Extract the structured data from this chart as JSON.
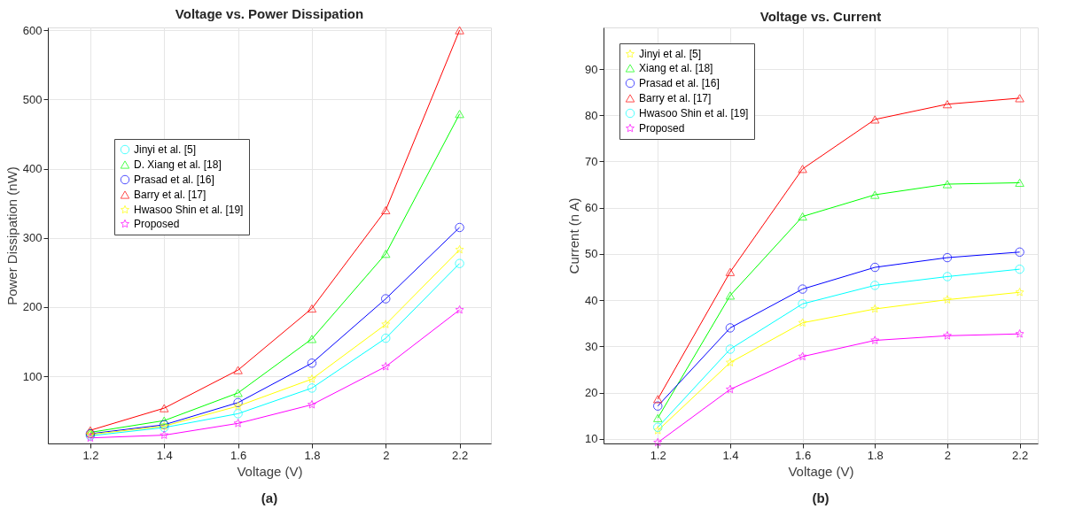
{
  "chart_data": [
    {
      "type": "line",
      "title": "Voltage vs. Power Dissipation",
      "xlabel": "Voltage (V)",
      "ylabel": "Power Dissipation (nW)",
      "annotations": [
        "(a)"
      ],
      "x": [
        1.2,
        1.4,
        1.6,
        1.8,
        2.0,
        2.2
      ],
      "xlim": [
        1.085,
        2.285
      ],
      "ylim": [
        3,
        604
      ],
      "xticks": [
        1.2,
        1.4,
        1.6,
        1.8,
        2,
        2.2
      ],
      "yticks": [
        100,
        200,
        300,
        400,
        500,
        600
      ],
      "grid": true,
      "legend": "left",
      "line_style": "solid",
      "series": [
        {
          "name": "Jinyi et al. [5]",
          "color": "#00ffff",
          "marker": "circle",
          "values": [
            14,
            26,
            46,
            83,
            155,
            263
          ]
        },
        {
          "name": "D. Xiang et al. [18]",
          "color": "#00ff00",
          "marker": "triangle",
          "values": [
            19,
            36,
            76,
            154,
            277,
            479
          ]
        },
        {
          "name": "Prasad et al. [16]",
          "color": "#0000ff",
          "marker": "circle",
          "values": [
            17,
            30,
            62,
            119,
            212,
            315
          ]
        },
        {
          "name": "Barry et al. [17]",
          "color": "#ff0000",
          "marker": "triangle",
          "values": [
            22,
            54,
            109,
            198,
            340,
            600
          ]
        },
        {
          "name": "Hwasoo Shin et al. [19]",
          "color": "#ffff00",
          "marker": "star",
          "values": [
            16,
            28,
            57,
            96,
            175,
            283
          ]
        },
        {
          "name": "Proposed",
          "color": "#ff00ff",
          "marker": "star",
          "values": [
            11,
            15,
            32,
            59,
            114,
            196
          ]
        }
      ]
    },
    {
      "type": "line",
      "title": "Voltage vs. Current",
      "xlabel": "Voltage (V)",
      "ylabel": "Current (n A)",
      "annotations": [
        "(b)"
      ],
      "x": [
        1.2,
        1.4,
        1.6,
        1.8,
        2.0,
        2.2
      ],
      "xlim": [
        1.05,
        2.25
      ],
      "ylim": [
        9,
        99
      ],
      "xticks": [
        1.2,
        1.4,
        1.6,
        1.8,
        2,
        2.2
      ],
      "yticks": [
        10,
        20,
        30,
        40,
        50,
        60,
        70,
        80,
        90
      ],
      "grid": true,
      "legend": "top left",
      "line_style": "solid",
      "series": [
        {
          "name": "Jinyi et al. [5]",
          "color": "#ffff00",
          "marker": "star",
          "values": [
            11.8,
            26.5,
            35.1,
            38.1,
            40.1,
            41.7
          ]
        },
        {
          "name": "Xiang et al. [18]",
          "color": "#00ff00",
          "marker": "triangle",
          "values": [
            14.5,
            41.0,
            58.1,
            62.8,
            65.1,
            65.4
          ]
        },
        {
          "name": "Prasad et al. [16]",
          "color": "#0000ff",
          "marker": "circle",
          "values": [
            17.1,
            34.0,
            42.4,
            47.1,
            49.2,
            50.4
          ]
        },
        {
          "name": " Barry et al. [17]",
          "color": "#ff0000",
          "marker": "triangle",
          "values": [
            18.6,
            46.1,
            68.4,
            79.1,
            82.4,
            83.7
          ]
        },
        {
          "name": " Hwasoo Shin et al. [19]",
          "color": "#00ffff",
          "marker": "circle",
          "values": [
            12.5,
            29.4,
            39.2,
            43.2,
            45.1,
            46.7
          ]
        },
        {
          "name": "Proposed",
          "color": "#ff00ff",
          "marker": "star",
          "values": [
            9.2,
            20.7,
            27.8,
            31.3,
            32.3,
            32.7
          ]
        }
      ]
    }
  ]
}
